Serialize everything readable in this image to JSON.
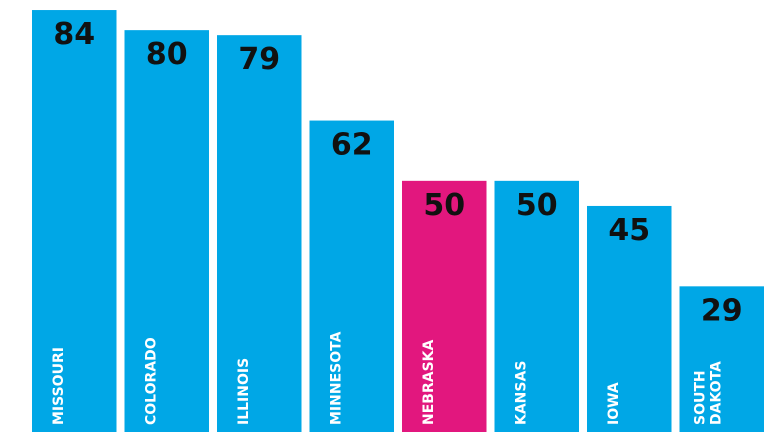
{
  "chart_data": {
    "type": "bar",
    "categories": [
      "MISSOURI",
      "COLORADO",
      "ILLINOIS",
      "MINNESOTA",
      "NEBRASKA",
      "KANSAS",
      "IOWA",
      "SOUTH DAKOTA"
    ],
    "values": [
      84,
      80,
      79,
      62,
      50,
      50,
      45,
      29
    ],
    "colors": [
      "#00a7e6",
      "#00a7e6",
      "#00a7e6",
      "#00a7e6",
      "#e2177e",
      "#00a7e6",
      "#00a7e6",
      "#00a7e6"
    ],
    "ylim": [
      0,
      86
    ]
  }
}
